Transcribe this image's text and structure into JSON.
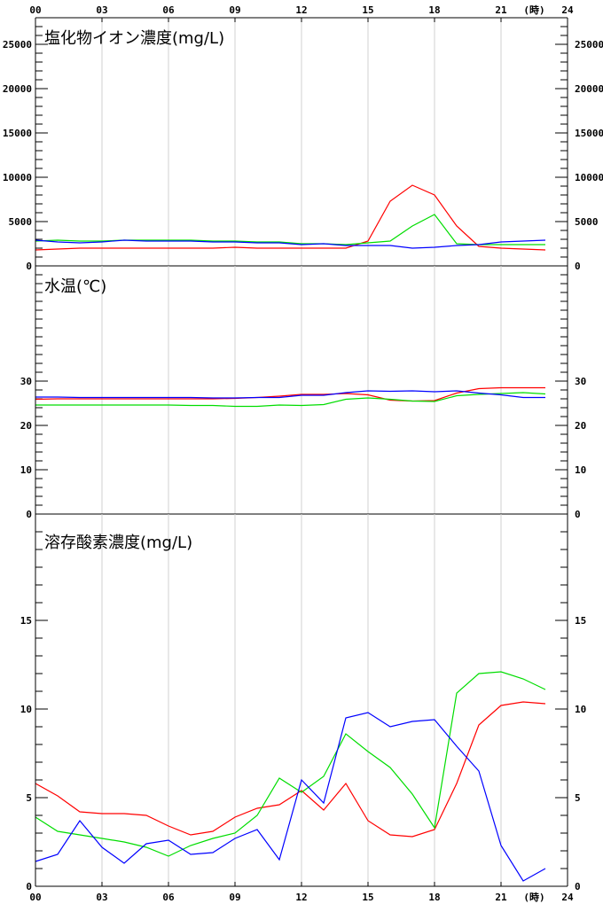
{
  "chart_data": [
    {
      "type": "line",
      "title": "塩化物イオン濃度(mg/L)",
      "x_unit_label": "(時)",
      "x_ticks": [
        "00",
        "03",
        "06",
        "09",
        "12",
        "15",
        "18",
        "21",
        "24"
      ],
      "xlim": [
        0,
        24
      ],
      "ylim": [
        0,
        28000
      ],
      "y_ticks": [
        0,
        5000,
        10000,
        15000,
        20000,
        25000
      ],
      "grid": "vertical",
      "series": [
        {
          "color": "#ff0000",
          "x": [
            0,
            1,
            2,
            3,
            4,
            5,
            6,
            7,
            8,
            9,
            10,
            11,
            12,
            13,
            14,
            15,
            16,
            17,
            18,
            19,
            20,
            21,
            22,
            23
          ],
          "values": [
            1800,
            1900,
            2000,
            2000,
            2000,
            2000,
            2000,
            2000,
            2000,
            2100,
            2000,
            2000,
            2000,
            2000,
            2000,
            2800,
            7300,
            9100,
            8000,
            4500,
            2200,
            2000,
            1900,
            1800
          ]
        },
        {
          "color": "#00dd00",
          "x": [
            0,
            1,
            2,
            3,
            4,
            5,
            6,
            7,
            8,
            9,
            10,
            11,
            12,
            13,
            14,
            15,
            16,
            17,
            18,
            19,
            20,
            21,
            22,
            23
          ],
          "values": [
            2800,
            2900,
            2800,
            2800,
            2900,
            2900,
            2900,
            2900,
            2800,
            2800,
            2700,
            2700,
            2500,
            2500,
            2400,
            2600,
            2800,
            4500,
            5800,
            2500,
            2400,
            2400,
            2400,
            2400
          ]
        },
        {
          "color": "#0000ff",
          "x": [
            0,
            1,
            2,
            3,
            4,
            5,
            6,
            7,
            8,
            9,
            10,
            11,
            12,
            13,
            14,
            15,
            16,
            17,
            18,
            19,
            20,
            21,
            22,
            23
          ],
          "values": [
            2900,
            2700,
            2600,
            2700,
            2900,
            2800,
            2800,
            2800,
            2700,
            2700,
            2600,
            2600,
            2400,
            2500,
            2300,
            2300,
            2300,
            2000,
            2100,
            2300,
            2400,
            2700,
            2800,
            2900
          ]
        }
      ]
    },
    {
      "type": "line",
      "title": "水温(℃)",
      "xlim": [
        0,
        24
      ],
      "ylim": [
        0,
        56
      ],
      "y_ticks": [
        0,
        10,
        20,
        30
      ],
      "grid": "vertical",
      "series": [
        {
          "color": "#ff0000",
          "x": [
            0,
            1,
            2,
            3,
            4,
            5,
            6,
            7,
            8,
            9,
            10,
            11,
            12,
            13,
            14,
            15,
            16,
            17,
            18,
            19,
            20,
            21,
            22,
            23
          ],
          "values": [
            25.9,
            26.0,
            26.0,
            26.0,
            26.0,
            26.0,
            26.0,
            26.0,
            26.0,
            26.1,
            26.3,
            26.6,
            27.0,
            27.0,
            27.2,
            26.9,
            25.7,
            25.5,
            25.6,
            27.3,
            28.3,
            28.5,
            28.5,
            28.5
          ]
        },
        {
          "color": "#00dd00",
          "x": [
            0,
            1,
            2,
            3,
            4,
            5,
            6,
            7,
            8,
            9,
            10,
            11,
            12,
            13,
            14,
            15,
            16,
            17,
            18,
            19,
            20,
            21,
            22,
            23
          ],
          "values": [
            24.6,
            24.6,
            24.6,
            24.6,
            24.6,
            24.6,
            24.6,
            24.5,
            24.5,
            24.3,
            24.3,
            24.6,
            24.5,
            24.7,
            25.9,
            26.2,
            25.9,
            25.5,
            25.4,
            26.7,
            27.0,
            27.2,
            27.4,
            27.1
          ]
        },
        {
          "color": "#0000ff",
          "x": [
            0,
            1,
            2,
            3,
            4,
            5,
            6,
            7,
            8,
            9,
            10,
            11,
            12,
            13,
            14,
            15,
            16,
            17,
            18,
            19,
            20,
            21,
            22,
            23
          ],
          "values": [
            26.4,
            26.4,
            26.3,
            26.3,
            26.3,
            26.3,
            26.3,
            26.3,
            26.2,
            26.2,
            26.3,
            26.3,
            26.8,
            26.8,
            27.4,
            27.8,
            27.7,
            27.8,
            27.6,
            27.8,
            27.3,
            26.9,
            26.3,
            26.3
          ]
        }
      ]
    },
    {
      "type": "line",
      "title": "溶存酸素濃度(mg/L)",
      "x_unit_label": "(時)",
      "x_ticks": [
        "00",
        "03",
        "06",
        "09",
        "12",
        "15",
        "18",
        "21",
        "24"
      ],
      "xlim": [
        0,
        24
      ],
      "ylim": [
        0,
        21
      ],
      "y_ticks": [
        0,
        5,
        10,
        15
      ],
      "grid": "vertical",
      "series": [
        {
          "color": "#ff0000",
          "x": [
            0,
            1,
            2,
            3,
            4,
            5,
            6,
            7,
            8,
            9,
            10,
            11,
            12,
            13,
            14,
            15,
            16,
            17,
            18,
            19,
            20,
            21,
            22,
            23
          ],
          "values": [
            5.8,
            5.1,
            4.2,
            4.1,
            4.1,
            4.0,
            3.4,
            2.9,
            3.1,
            3.9,
            4.4,
            4.6,
            5.4,
            4.3,
            5.8,
            3.7,
            2.9,
            2.8,
            3.2,
            5.8,
            9.1,
            10.2,
            10.4,
            10.3
          ]
        },
        {
          "color": "#00dd00",
          "x": [
            0,
            1,
            2,
            3,
            4,
            5,
            6,
            7,
            8,
            9,
            10,
            11,
            12,
            13,
            14,
            15,
            16,
            17,
            18,
            19,
            20,
            21,
            22,
            23
          ],
          "values": [
            3.9,
            3.1,
            2.9,
            2.7,
            2.5,
            2.2,
            1.7,
            2.3,
            2.7,
            3.0,
            4.0,
            6.1,
            5.3,
            6.2,
            8.6,
            7.6,
            6.7,
            5.2,
            3.3,
            10.9,
            12.0,
            12.1,
            11.7,
            11.1
          ]
        },
        {
          "color": "#0000ff",
          "x": [
            0,
            1,
            2,
            3,
            4,
            5,
            6,
            7,
            8,
            9,
            10,
            11,
            12,
            13,
            14,
            15,
            16,
            17,
            18,
            19,
            20,
            21,
            22,
            23
          ],
          "values": [
            1.4,
            1.8,
            3.7,
            2.2,
            1.3,
            2.4,
            2.6,
            1.8,
            1.9,
            2.7,
            3.2,
            1.5,
            6.0,
            4.7,
            9.5,
            9.8,
            9.0,
            9.3,
            9.4,
            7.9,
            6.5,
            2.3,
            0.3,
            1.0
          ]
        }
      ]
    }
  ]
}
